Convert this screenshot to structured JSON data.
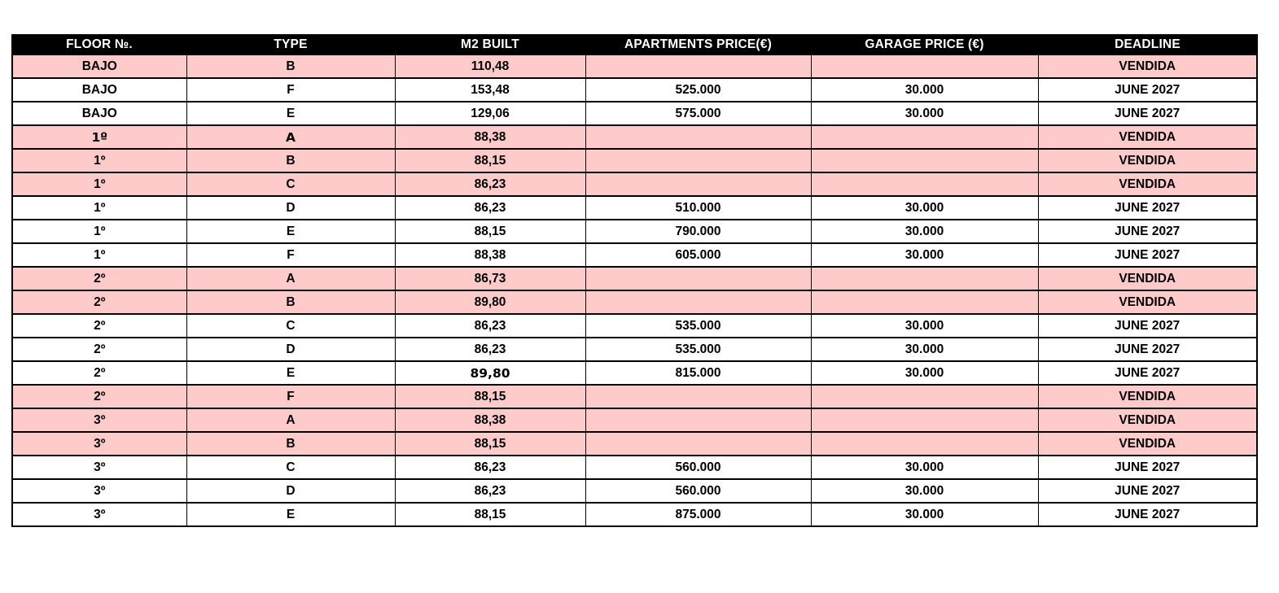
{
  "table": {
    "columns": [
      "FLOOR №.",
      "TYPE",
      "M2 BUILT",
      "APARTMENTS PRICE(€)",
      "GARAGE PRICE (€)",
      "DEADLINE"
    ],
    "status_sold_label": "VENDIDA",
    "colors": {
      "sold_row_bg": "#ffcaca",
      "row_bg": "#ffffff",
      "header_bg": "#000000",
      "header_text": "#ffffff",
      "border": "#000000"
    },
    "rows": [
      {
        "floor": "BAJO",
        "type": "B",
        "m2_built": "110,48",
        "apartments_price": "",
        "garage_price": "",
        "deadline": "VENDIDA",
        "sold": true
      },
      {
        "floor": "BAJO",
        "type": "F",
        "m2_built": "153,48",
        "apartments_price": "525.000",
        "garage_price": "30.000",
        "deadline": "JUNE 2027",
        "sold": false
      },
      {
        "floor": "BAJO",
        "type": "E",
        "m2_built": "129,06",
        "apartments_price": "575.000",
        "garage_price": "30.000",
        "deadline": "JUNE 2027",
        "sold": false
      },
      {
        "floor": "1º",
        "floor_parts": {
          "num": "1",
          "ord": "º"
        },
        "type": "A",
        "m2_built": "88,38",
        "apartments_price": "",
        "garage_price": "",
        "deadline": "VENDIDA",
        "sold": true,
        "regular_weight": [
          "floor",
          "type"
        ]
      },
      {
        "floor": "1º",
        "type": "B",
        "m2_built": "88,15",
        "apartments_price": "",
        "garage_price": "",
        "deadline": "VENDIDA",
        "sold": true
      },
      {
        "floor": "1º",
        "type": "C",
        "m2_built": "86,23",
        "apartments_price": "",
        "garage_price": "",
        "deadline": "VENDIDA",
        "sold": true
      },
      {
        "floor": "1º",
        "type": "D",
        "m2_built": "86,23",
        "apartments_price": "510.000",
        "garage_price": "30.000",
        "deadline": "JUNE 2027",
        "sold": false
      },
      {
        "floor": "1º",
        "type": "E",
        "m2_built": "88,15",
        "apartments_price": "790.000",
        "garage_price": "30.000",
        "deadline": "JUNE 2027",
        "sold": false
      },
      {
        "floor": "1º",
        "type": "F",
        "m2_built": "88,38",
        "apartments_price": "605.000",
        "garage_price": "30.000",
        "deadline": "JUNE 2027",
        "sold": false
      },
      {
        "floor": "2º",
        "type": "A",
        "m2_built": "86,73",
        "apartments_price": "",
        "garage_price": "",
        "deadline": "VENDIDA",
        "sold": true
      },
      {
        "floor": "2º",
        "type": "B",
        "m2_built": "89,80",
        "apartments_price": "",
        "garage_price": "",
        "deadline": "VENDIDA",
        "sold": true
      },
      {
        "floor": "2º",
        "type": "C",
        "m2_built": "86,23",
        "apartments_price": "535.000",
        "garage_price": "30.000",
        "deadline": "JUNE 2027",
        "sold": false
      },
      {
        "floor": "2º",
        "type": "D",
        "m2_built": "86,23",
        "apartments_price": "535.000",
        "garage_price": "30.000",
        "deadline": "JUNE 2027",
        "sold": false
      },
      {
        "floor": "2º",
        "type": "E",
        "m2_built": "89,80",
        "apartments_price": "815.000",
        "garage_price": "30.000",
        "deadline": "JUNE 2027",
        "sold": false,
        "regular_weight": [
          "m2_built"
        ]
      },
      {
        "floor": "2º",
        "type": "F",
        "m2_built": "88,15",
        "apartments_price": "",
        "garage_price": "",
        "deadline": "VENDIDA",
        "sold": true
      },
      {
        "floor": "3º",
        "type": "A",
        "m2_built": "88,38",
        "apartments_price": "",
        "garage_price": "",
        "deadline": "VENDIDA",
        "sold": true
      },
      {
        "floor": "3º",
        "type": "B",
        "m2_built": "88,15",
        "apartments_price": "",
        "garage_price": "",
        "deadline": "VENDIDA",
        "sold": true
      },
      {
        "floor": "3º",
        "type": "C",
        "m2_built": "86,23",
        "apartments_price": "560.000",
        "garage_price": "30.000",
        "deadline": "JUNE 2027",
        "sold": false
      },
      {
        "floor": "3º",
        "type": "D",
        "m2_built": "86,23",
        "apartments_price": "560.000",
        "garage_price": "30.000",
        "deadline": "JUNE 2027",
        "sold": false
      },
      {
        "floor": "3º",
        "type": "E",
        "m2_built": "88,15",
        "apartments_price": "875.000",
        "garage_price": "30.000",
        "deadline": "JUNE 2027",
        "sold": false
      }
    ]
  }
}
